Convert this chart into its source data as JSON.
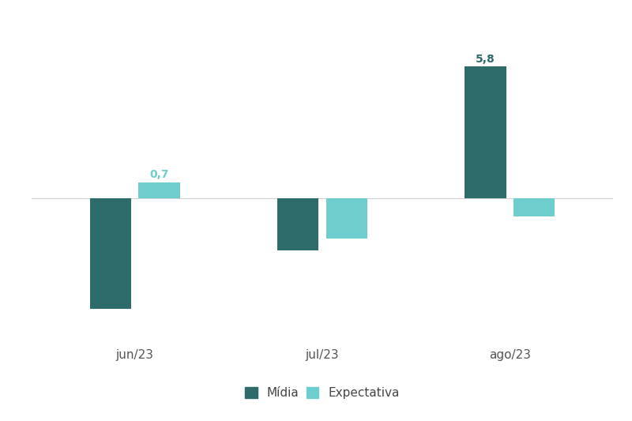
{
  "categories": [
    "jun/23",
    "jul/23",
    "ago/23"
  ],
  "midia": [
    -4.9,
    -2.3,
    5.8
  ],
  "expectativa": [
    0.7,
    -1.8,
    -0.8
  ],
  "midia_color": "#2e6b6b",
  "expectativa_color": "#6ecece",
  "label_color_midia": "#2e6b6b",
  "label_color_exp": "#6ecece",
  "background_color": "#ffffff",
  "grid_color": "#d0d0d0",
  "ylim": [
    -6.5,
    8.0
  ],
  "bar_width": 0.22,
  "legend_midia": "Mídia",
  "legend_expectativa": "Expectativa",
  "value_fontsize": 10,
  "label_fontsize": 11,
  "legend_fontsize": 11,
  "tick_fontsize": 11
}
